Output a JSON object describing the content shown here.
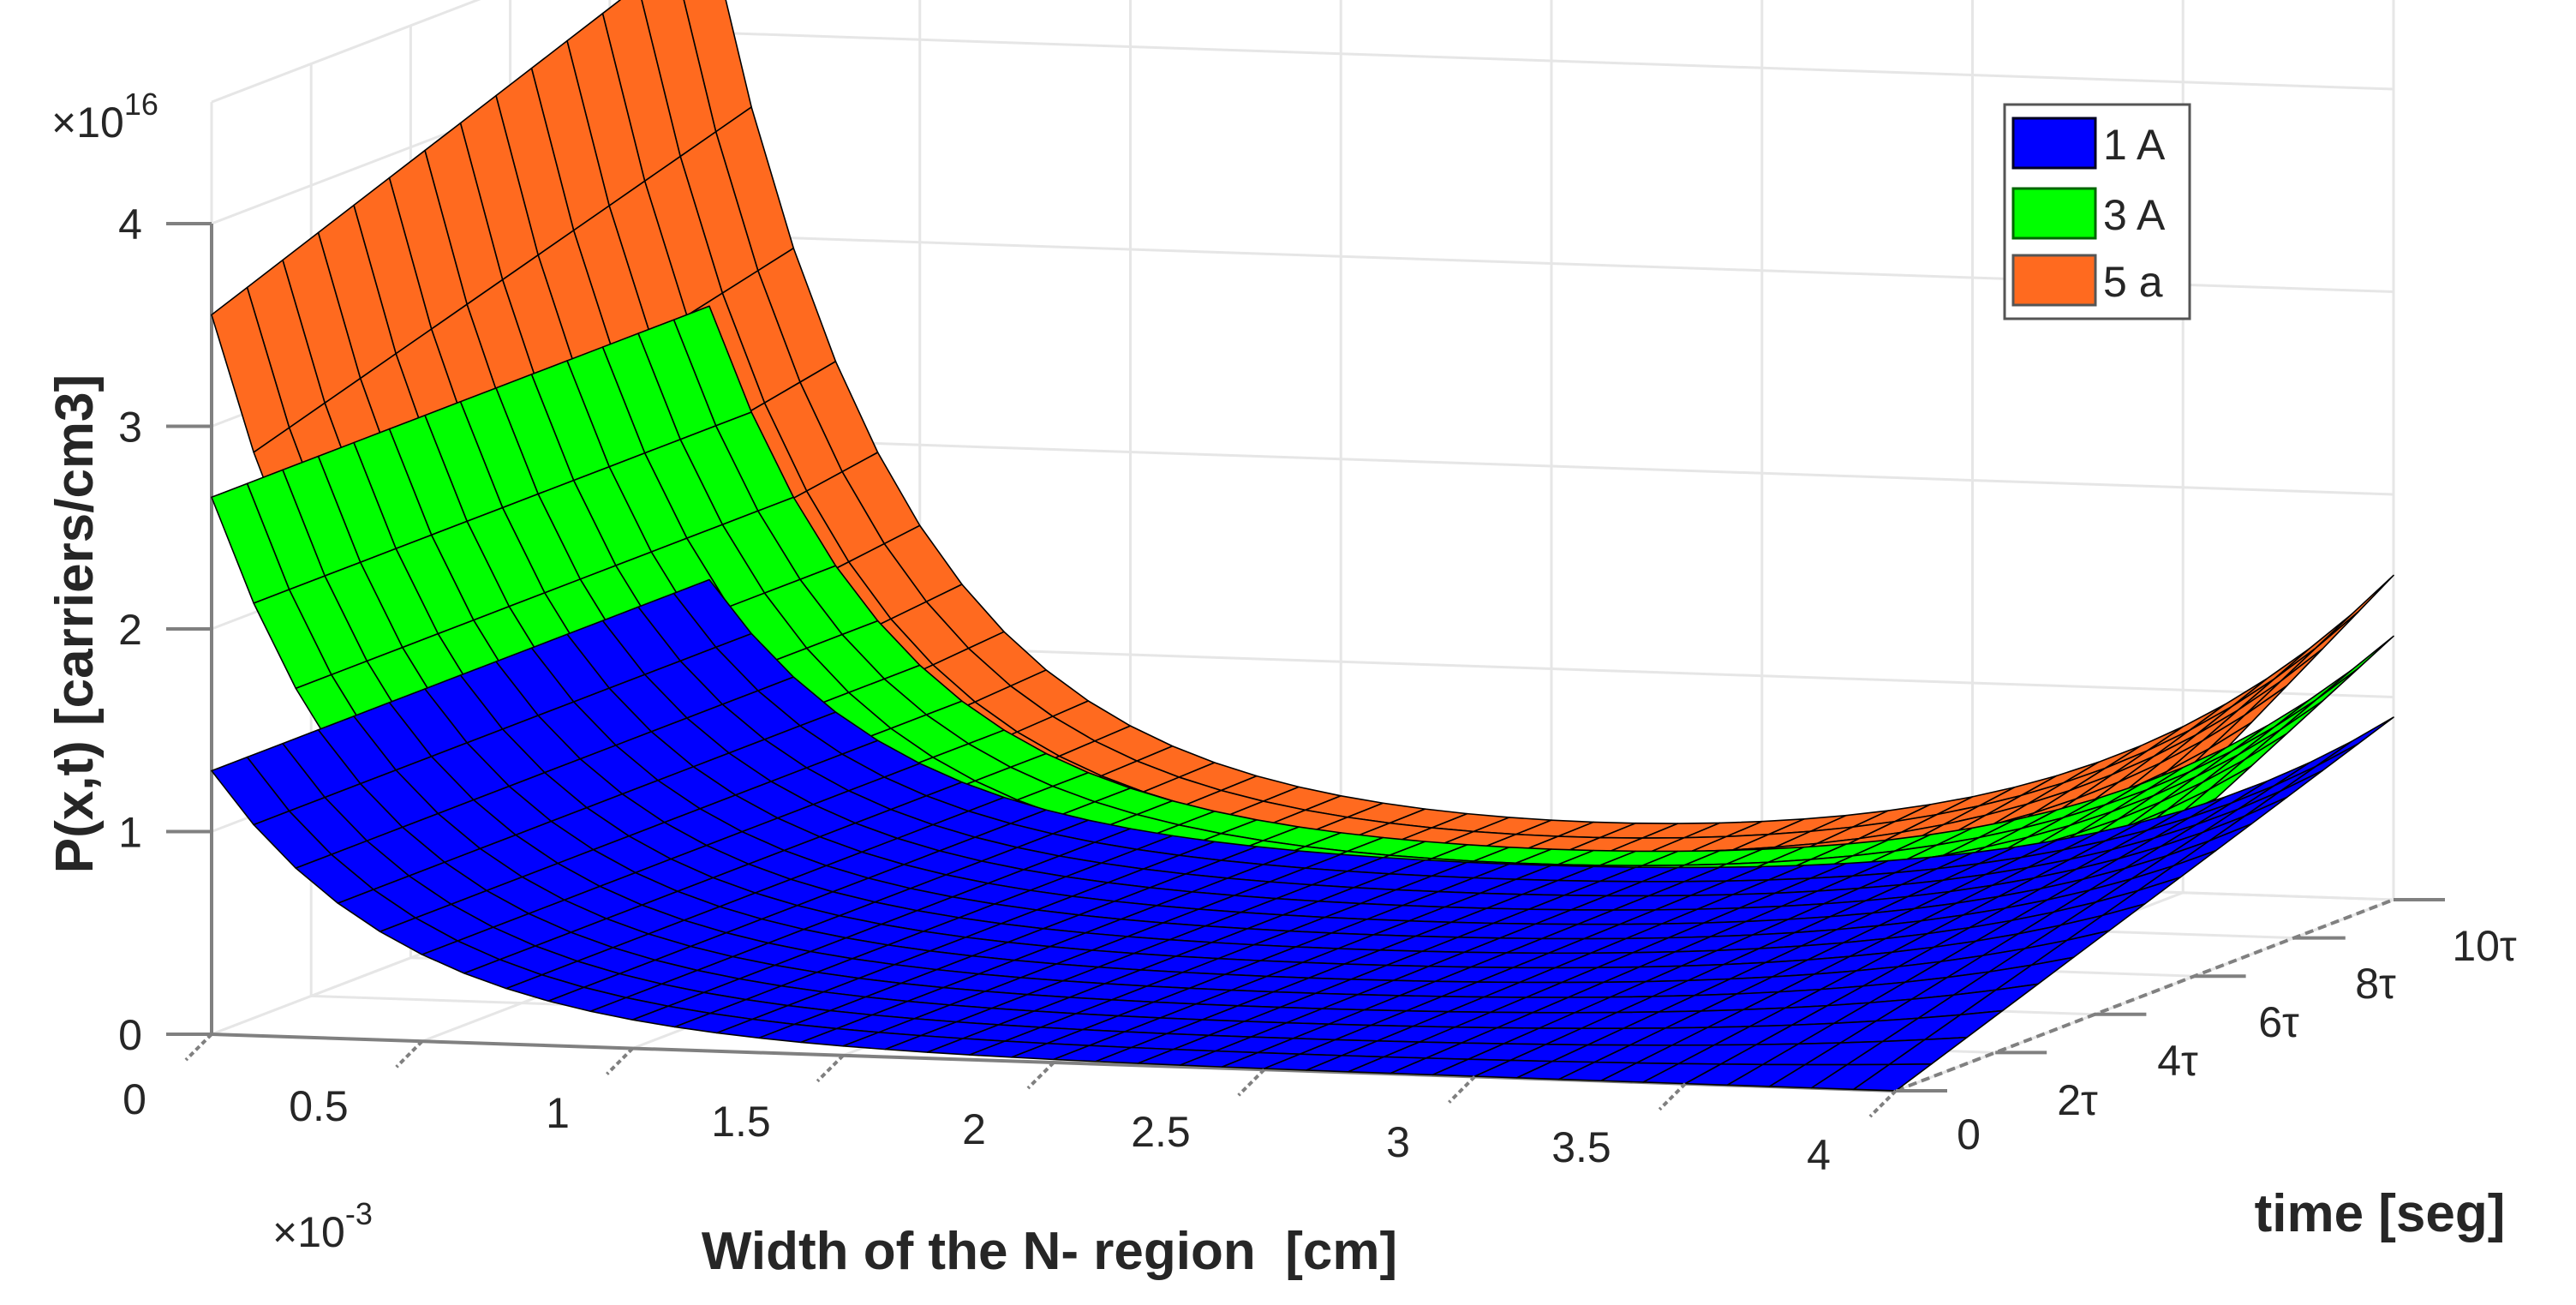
{
  "chart_data": {
    "type": "surface3d",
    "title": "",
    "xlabel": "Width of the N- region  [cm]",
    "ylabel": "time [seg]",
    "zlabel": "P(x,t) [carriers/cm3]",
    "x_multiplier": "×10",
    "x_multiplier_exp": "-3",
    "z_multiplier": "×10",
    "z_multiplier_exp": "16",
    "x_ticks": [
      "0",
      "0.5",
      "1",
      "1.5",
      "2",
      "2.5",
      "3",
      "3.5",
      "4"
    ],
    "x_tick_values": [
      0,
      0.5,
      1,
      1.5,
      2,
      2.5,
      3,
      3.5,
      4
    ],
    "y_ticks": [
      "0",
      "2τ",
      "4τ",
      "6τ",
      "8τ",
      "10τ"
    ],
    "z_ticks": [
      "0",
      "1",
      "2",
      "3",
      "4"
    ],
    "z_tick_values": [
      0,
      1,
      2,
      3,
      4
    ],
    "xlim": [
      0,
      4
    ],
    "ylim": [
      0,
      10
    ],
    "zlim": [
      0,
      4
    ],
    "grid": true,
    "legend_position": "upper right",
    "series": [
      {
        "name": "1 A",
        "color": "#0000ff",
        "edge_x0_at_t0": 1.3,
        "edge_x0_at_t10": 1.3,
        "edge_x4_at_t10": 0.9,
        "minimum": 0.0
      },
      {
        "name": "3 A",
        "color": "#00ff00",
        "edge_x0_at_t0": 2.65,
        "edge_x0_at_t10": 2.65,
        "edge_x4_at_t10": 1.3,
        "minimum": 0.1
      },
      {
        "name": "5 a",
        "color": "#ff6a1f",
        "edge_x0_at_t0": 3.55,
        "edge_x0_at_t10": 4.5,
        "edge_x4_at_t10": 1.6,
        "minimum": 0.3
      }
    ]
  },
  "legend": {
    "items": [
      {
        "label": "1 A",
        "color": "#0000ff",
        "edge": "#000022"
      },
      {
        "label": "3 A",
        "color": "#00ff00",
        "edge": "#006600"
      },
      {
        "label": "5 a",
        "color": "#ff6a1f",
        "edge": "#555555"
      }
    ]
  },
  "colors": {
    "axis": "#808080",
    "grid": "#e6e6e6",
    "text": "#262626",
    "mesh_edge": "#000000"
  }
}
